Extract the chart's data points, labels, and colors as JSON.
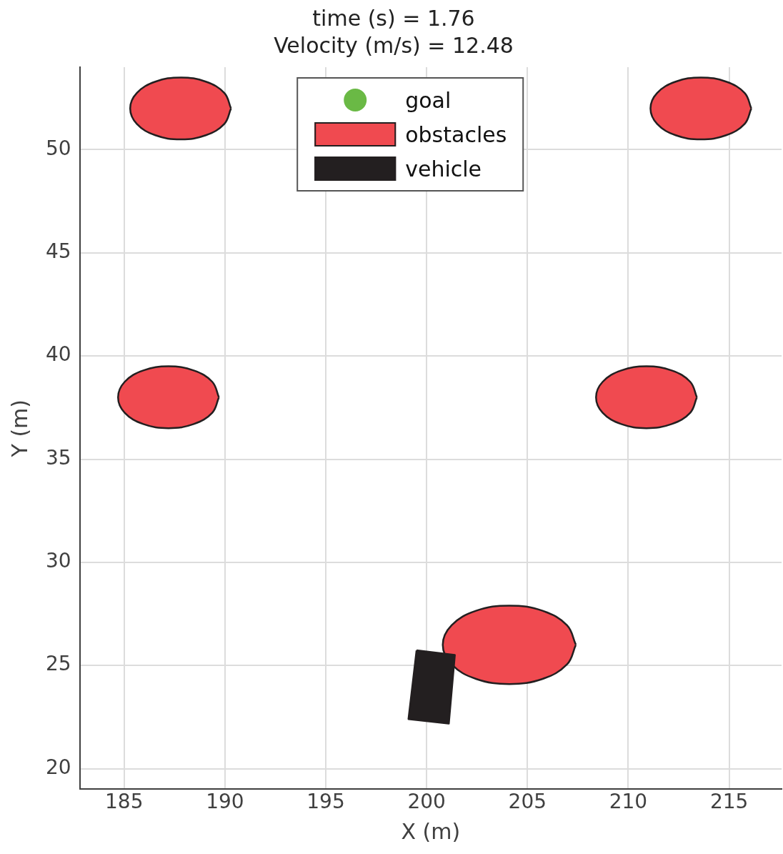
{
  "chart_data": {
    "type": "area",
    "title": "time (s) = 1.76",
    "subtitle": "Velocity (m/s) = 12.48",
    "xlabel": "X (m)",
    "ylabel": "Y (m)",
    "xlim": [
      182.8,
      217.6
    ],
    "ylim": [
      19,
      54
    ],
    "xticks": [
      185,
      190,
      195,
      200,
      205,
      210,
      215
    ],
    "yticks": [
      20,
      25,
      30,
      35,
      40,
      45,
      50
    ],
    "grid": true,
    "legend": "top",
    "series": [
      {
        "name": "goal",
        "type": "scatter",
        "color": "#6ab945"
      },
      {
        "name": "obstacles",
        "color": "#f04a50",
        "x": [
          190.3,
          189.97,
          189.05,
          187.8,
          186.55,
          185.63,
          185.3,
          185.63,
          186.55,
          187.8,
          189.05,
          189.97,
          190.3,
          null,
          216.1,
          215.77,
          214.85,
          213.6,
          212.35,
          211.43,
          211.1,
          211.43,
          212.35,
          213.6,
          214.85,
          215.77,
          216.1,
          null,
          189.7,
          189.37,
          188.45,
          187.2,
          185.95,
          185.03,
          184.7,
          185.03,
          185.95,
          187.2,
          188.45,
          189.37,
          189.7,
          null,
          213.4,
          213.07,
          212.15,
          210.9,
          209.65,
          208.73,
          208.4,
          208.73,
          209.65,
          210.9,
          212.15,
          213.07,
          213.4,
          null,
          207.4,
          206.96,
          205.75,
          204.1,
          202.45,
          201.24,
          200.8,
          201.24,
          202.45,
          204.1,
          205.75,
          206.96,
          207.4
        ],
        "values": [
          52,
          52.75,
          53.3,
          53.5,
          53.3,
          52.75,
          52,
          51.25,
          50.7,
          50.5,
          50.7,
          51.25,
          52,
          null,
          52,
          52.75,
          53.3,
          53.5,
          53.3,
          52.75,
          52,
          51.25,
          50.7,
          50.5,
          50.7,
          51.25,
          52,
          null,
          38,
          38.75,
          39.3,
          39.5,
          39.3,
          38.75,
          38,
          37.25,
          36.7,
          36.5,
          36.7,
          37.25,
          38,
          null,
          38,
          38.75,
          39.3,
          39.5,
          39.3,
          38.75,
          38,
          37.25,
          36.7,
          36.5,
          36.7,
          37.25,
          38,
          null,
          26,
          26.95,
          27.65,
          27.9,
          27.65,
          26.95,
          26,
          25.05,
          24.35,
          24.1,
          24.35,
          25.05,
          26
        ]
      },
      {
        "name": "vehicle",
        "color": "#231f20",
        "x": [
          199.5,
          201.4,
          201.1,
          199.1,
          199.5
        ],
        "values": [
          25.73,
          25.51,
          22.18,
          22.4,
          25.73
        ]
      }
    ]
  }
}
